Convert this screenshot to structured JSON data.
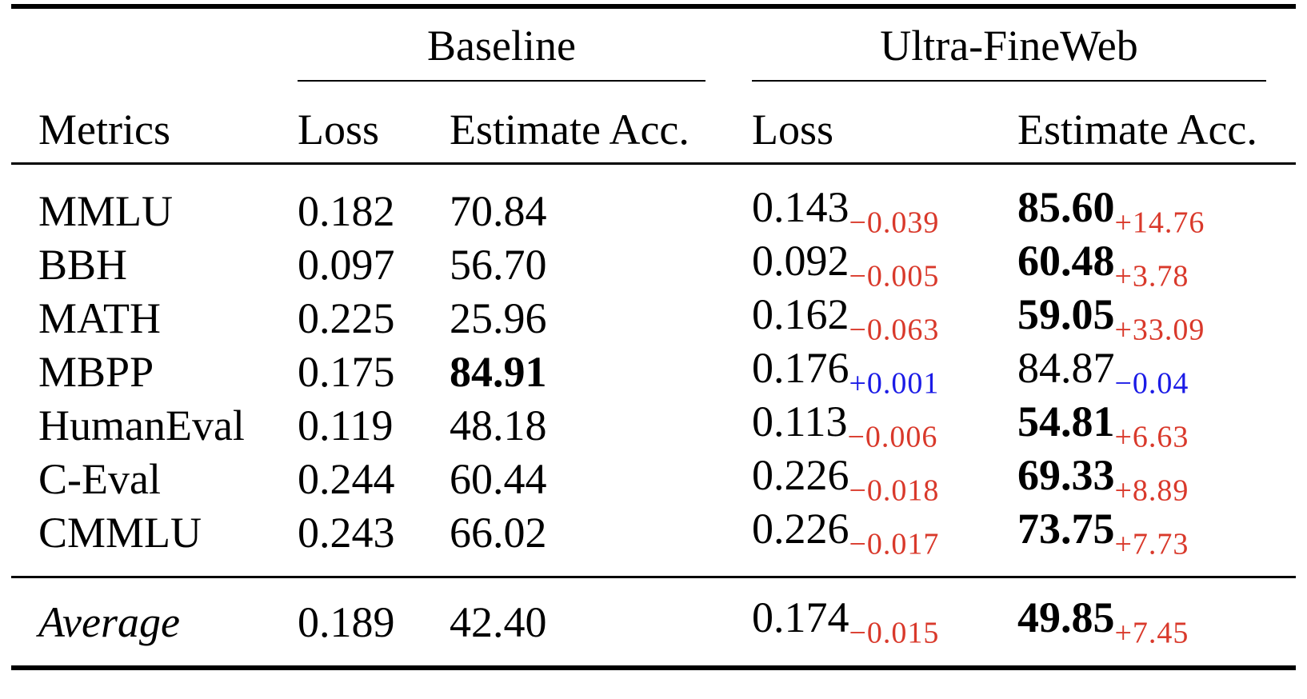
{
  "colors": {
    "improvement": "#d9392b",
    "regression": "#1b1be6",
    "rule": "#000000",
    "background": "#ffffff",
    "text": "#000000"
  },
  "header": {
    "metrics_label": "Metrics",
    "groups": [
      {
        "label": "Baseline",
        "loss_label": "Loss",
        "acc_label": "Estimate Acc."
      },
      {
        "label": "Ultra-FineWeb",
        "loss_label": "Loss",
        "acc_label": "Estimate Acc."
      }
    ]
  },
  "rows": [
    {
      "metric": "MMLU",
      "baseline_loss": "0.182",
      "baseline_acc": "70.84",
      "baseline_acc_bold": "false",
      "ufw_loss": "0.143",
      "ufw_loss_delta": "−0.039",
      "ufw_loss_tone": "improvement",
      "ufw_acc": "85.60",
      "ufw_acc_bold": "true",
      "ufw_acc_delta": "+14.76",
      "ufw_acc_tone": "improvement"
    },
    {
      "metric": "BBH",
      "baseline_loss": "0.097",
      "baseline_acc": "56.70",
      "baseline_acc_bold": "false",
      "ufw_loss": "0.092",
      "ufw_loss_delta": "−0.005",
      "ufw_loss_tone": "improvement",
      "ufw_acc": "60.48",
      "ufw_acc_bold": "true",
      "ufw_acc_delta": "+3.78",
      "ufw_acc_tone": "improvement"
    },
    {
      "metric": "MATH",
      "baseline_loss": "0.225",
      "baseline_acc": "25.96",
      "baseline_acc_bold": "false",
      "ufw_loss": "0.162",
      "ufw_loss_delta": "−0.063",
      "ufw_loss_tone": "improvement",
      "ufw_acc": "59.05",
      "ufw_acc_bold": "true",
      "ufw_acc_delta": "+33.09",
      "ufw_acc_tone": "improvement"
    },
    {
      "metric": "MBPP",
      "baseline_loss": "0.175",
      "baseline_acc": "84.91",
      "baseline_acc_bold": "true",
      "ufw_loss": "0.176",
      "ufw_loss_delta": "+0.001",
      "ufw_loss_tone": "regression",
      "ufw_acc": "84.87",
      "ufw_acc_bold": "false",
      "ufw_acc_delta": "−0.04",
      "ufw_acc_tone": "regression"
    },
    {
      "metric": "HumanEval",
      "baseline_loss": "0.119",
      "baseline_acc": "48.18",
      "baseline_acc_bold": "false",
      "ufw_loss": "0.113",
      "ufw_loss_delta": "−0.006",
      "ufw_loss_tone": "improvement",
      "ufw_acc": "54.81",
      "ufw_acc_bold": "true",
      "ufw_acc_delta": "+6.63",
      "ufw_acc_tone": "improvement"
    },
    {
      "metric": "C-Eval",
      "baseline_loss": "0.244",
      "baseline_acc": "60.44",
      "baseline_acc_bold": "false",
      "ufw_loss": "0.226",
      "ufw_loss_delta": "−0.018",
      "ufw_loss_tone": "improvement",
      "ufw_acc": "69.33",
      "ufw_acc_bold": "true",
      "ufw_acc_delta": "+8.89",
      "ufw_acc_tone": "improvement"
    },
    {
      "metric": "CMMLU",
      "baseline_loss": "0.243",
      "baseline_acc": "66.02",
      "baseline_acc_bold": "false",
      "ufw_loss": "0.226",
      "ufw_loss_delta": "−0.017",
      "ufw_loss_tone": "improvement",
      "ufw_acc": "73.75",
      "ufw_acc_bold": "true",
      "ufw_acc_delta": "+7.73",
      "ufw_acc_tone": "improvement"
    }
  ],
  "average": {
    "metric": "Average",
    "baseline_loss": "0.189",
    "baseline_acc": "42.40",
    "baseline_acc_bold": "false",
    "ufw_loss": "0.174",
    "ufw_loss_delta": "−0.015",
    "ufw_loss_tone": "improvement",
    "ufw_acc": "49.85",
    "ufw_acc_bold": "true",
    "ufw_acc_delta": "+7.45",
    "ufw_acc_tone": "improvement"
  }
}
